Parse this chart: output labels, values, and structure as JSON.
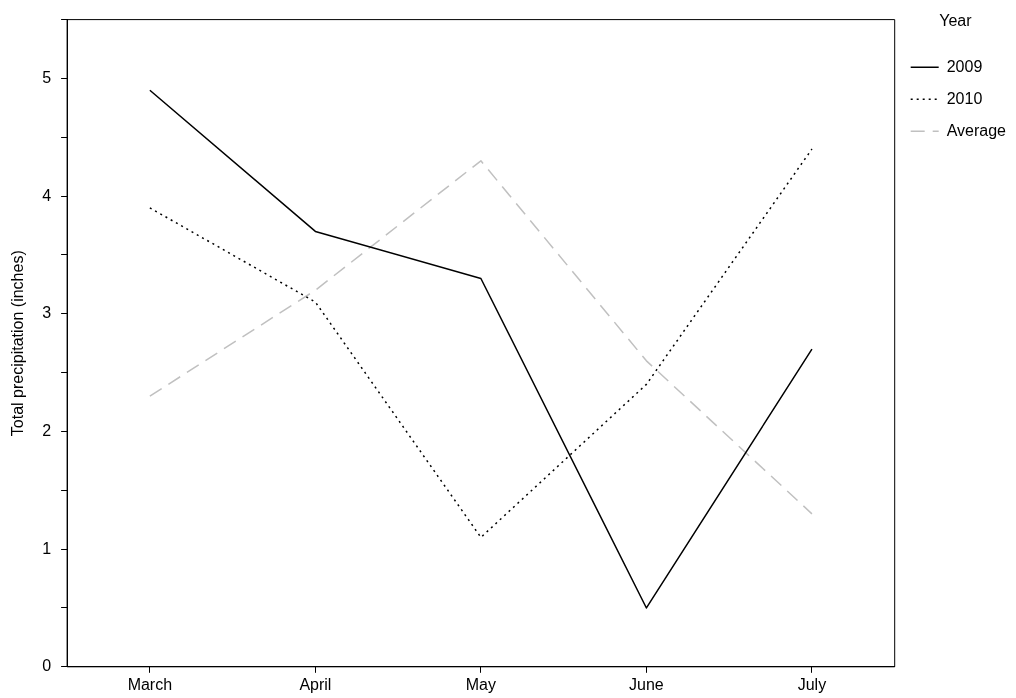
{
  "chart_data": {
    "type": "line",
    "ylabel": "Total precipitation (inches)",
    "legend_title": "Year",
    "categories": [
      "March",
      "April",
      "May",
      "June",
      "July"
    ],
    "series": [
      {
        "name": "2009",
        "color": "#000000",
        "line_style": "solid",
        "values": [
          4.9,
          3.7,
          3.3,
          0.5,
          2.7
        ]
      },
      {
        "name": "2010",
        "color": "#000000",
        "line_style": "dotted",
        "values": [
          3.9,
          3.1,
          1.1,
          2.4,
          4.4
        ]
      },
      {
        "name": "Average",
        "color": "#c0c0c0",
        "line_style": "dashed",
        "values": [
          2.3,
          3.2,
          4.3,
          2.6,
          1.3
        ]
      }
    ],
    "ylim": [
      0,
      5.5
    ],
    "yticks": [
      0,
      {
        "value": 0.5,
        "label": null
      },
      1,
      {
        "value": 1.5,
        "label": null
      },
      2,
      {
        "value": 2.5,
        "label": null
      },
      3,
      {
        "value": 3.5,
        "label": null
      },
      4,
      {
        "value": 4.5,
        "label": null
      },
      5,
      {
        "value": 5.5,
        "label": null
      }
    ],
    "grid": false,
    "legend": "top right",
    "marker": "none"
  }
}
